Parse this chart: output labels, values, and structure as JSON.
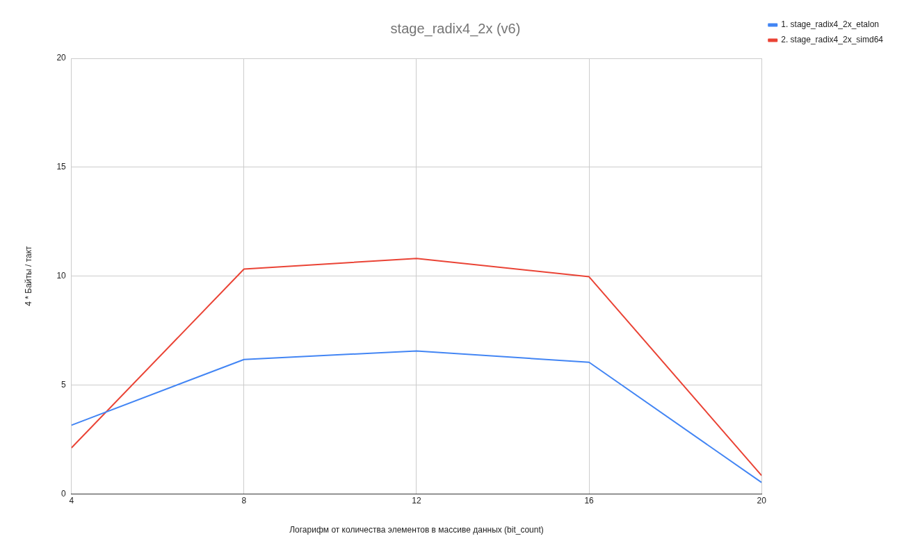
{
  "chart_data": {
    "type": "line",
    "title": "stage_radix4_2x (v6)",
    "xlabel": "Логарифм от количества элементов в массиве данных (bit_count)",
    "ylabel": "4 * Байты / такт",
    "x": [
      4,
      8,
      12,
      16,
      20
    ],
    "series": [
      {
        "name": "1. stage_radix4_2x_etalon",
        "color": "#4285f4",
        "values": [
          3.15,
          6.17,
          6.56,
          6.04,
          0.52
        ]
      },
      {
        "name": "2. stage_radix4_2x_simd64",
        "color": "#ea4335",
        "values": [
          2.11,
          10.32,
          10.81,
          9.97,
          0.84
        ]
      }
    ],
    "xlim": [
      4,
      20
    ],
    "xticks": [
      4,
      8,
      12,
      16,
      20
    ],
    "ylim": [
      0,
      20
    ],
    "yticks": [
      0,
      5,
      10,
      15,
      20
    ],
    "grid": true,
    "legend": "top right",
    "marker": "none",
    "line_style": "solid"
  }
}
